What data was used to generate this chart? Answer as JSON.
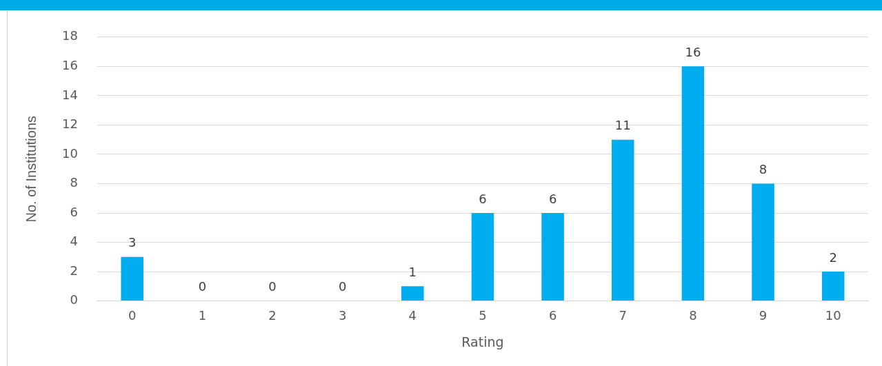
{
  "chart_data": {
    "type": "bar",
    "xlabel": "Rating",
    "ylabel": "No. of Institutions",
    "categories": [
      "0",
      "1",
      "2",
      "3",
      "4",
      "5",
      "6",
      "7",
      "8",
      "9",
      "10"
    ],
    "values": [
      3,
      0,
      0,
      0,
      1,
      6,
      6,
      11,
      16,
      8,
      2
    ],
    "color": "#00aeef",
    "ylim": [
      0,
      18
    ],
    "yticks": [
      0,
      2,
      4,
      6,
      8,
      10,
      12,
      14,
      16,
      18
    ],
    "grid": "y",
    "legend": false,
    "data_labels": true
  }
}
